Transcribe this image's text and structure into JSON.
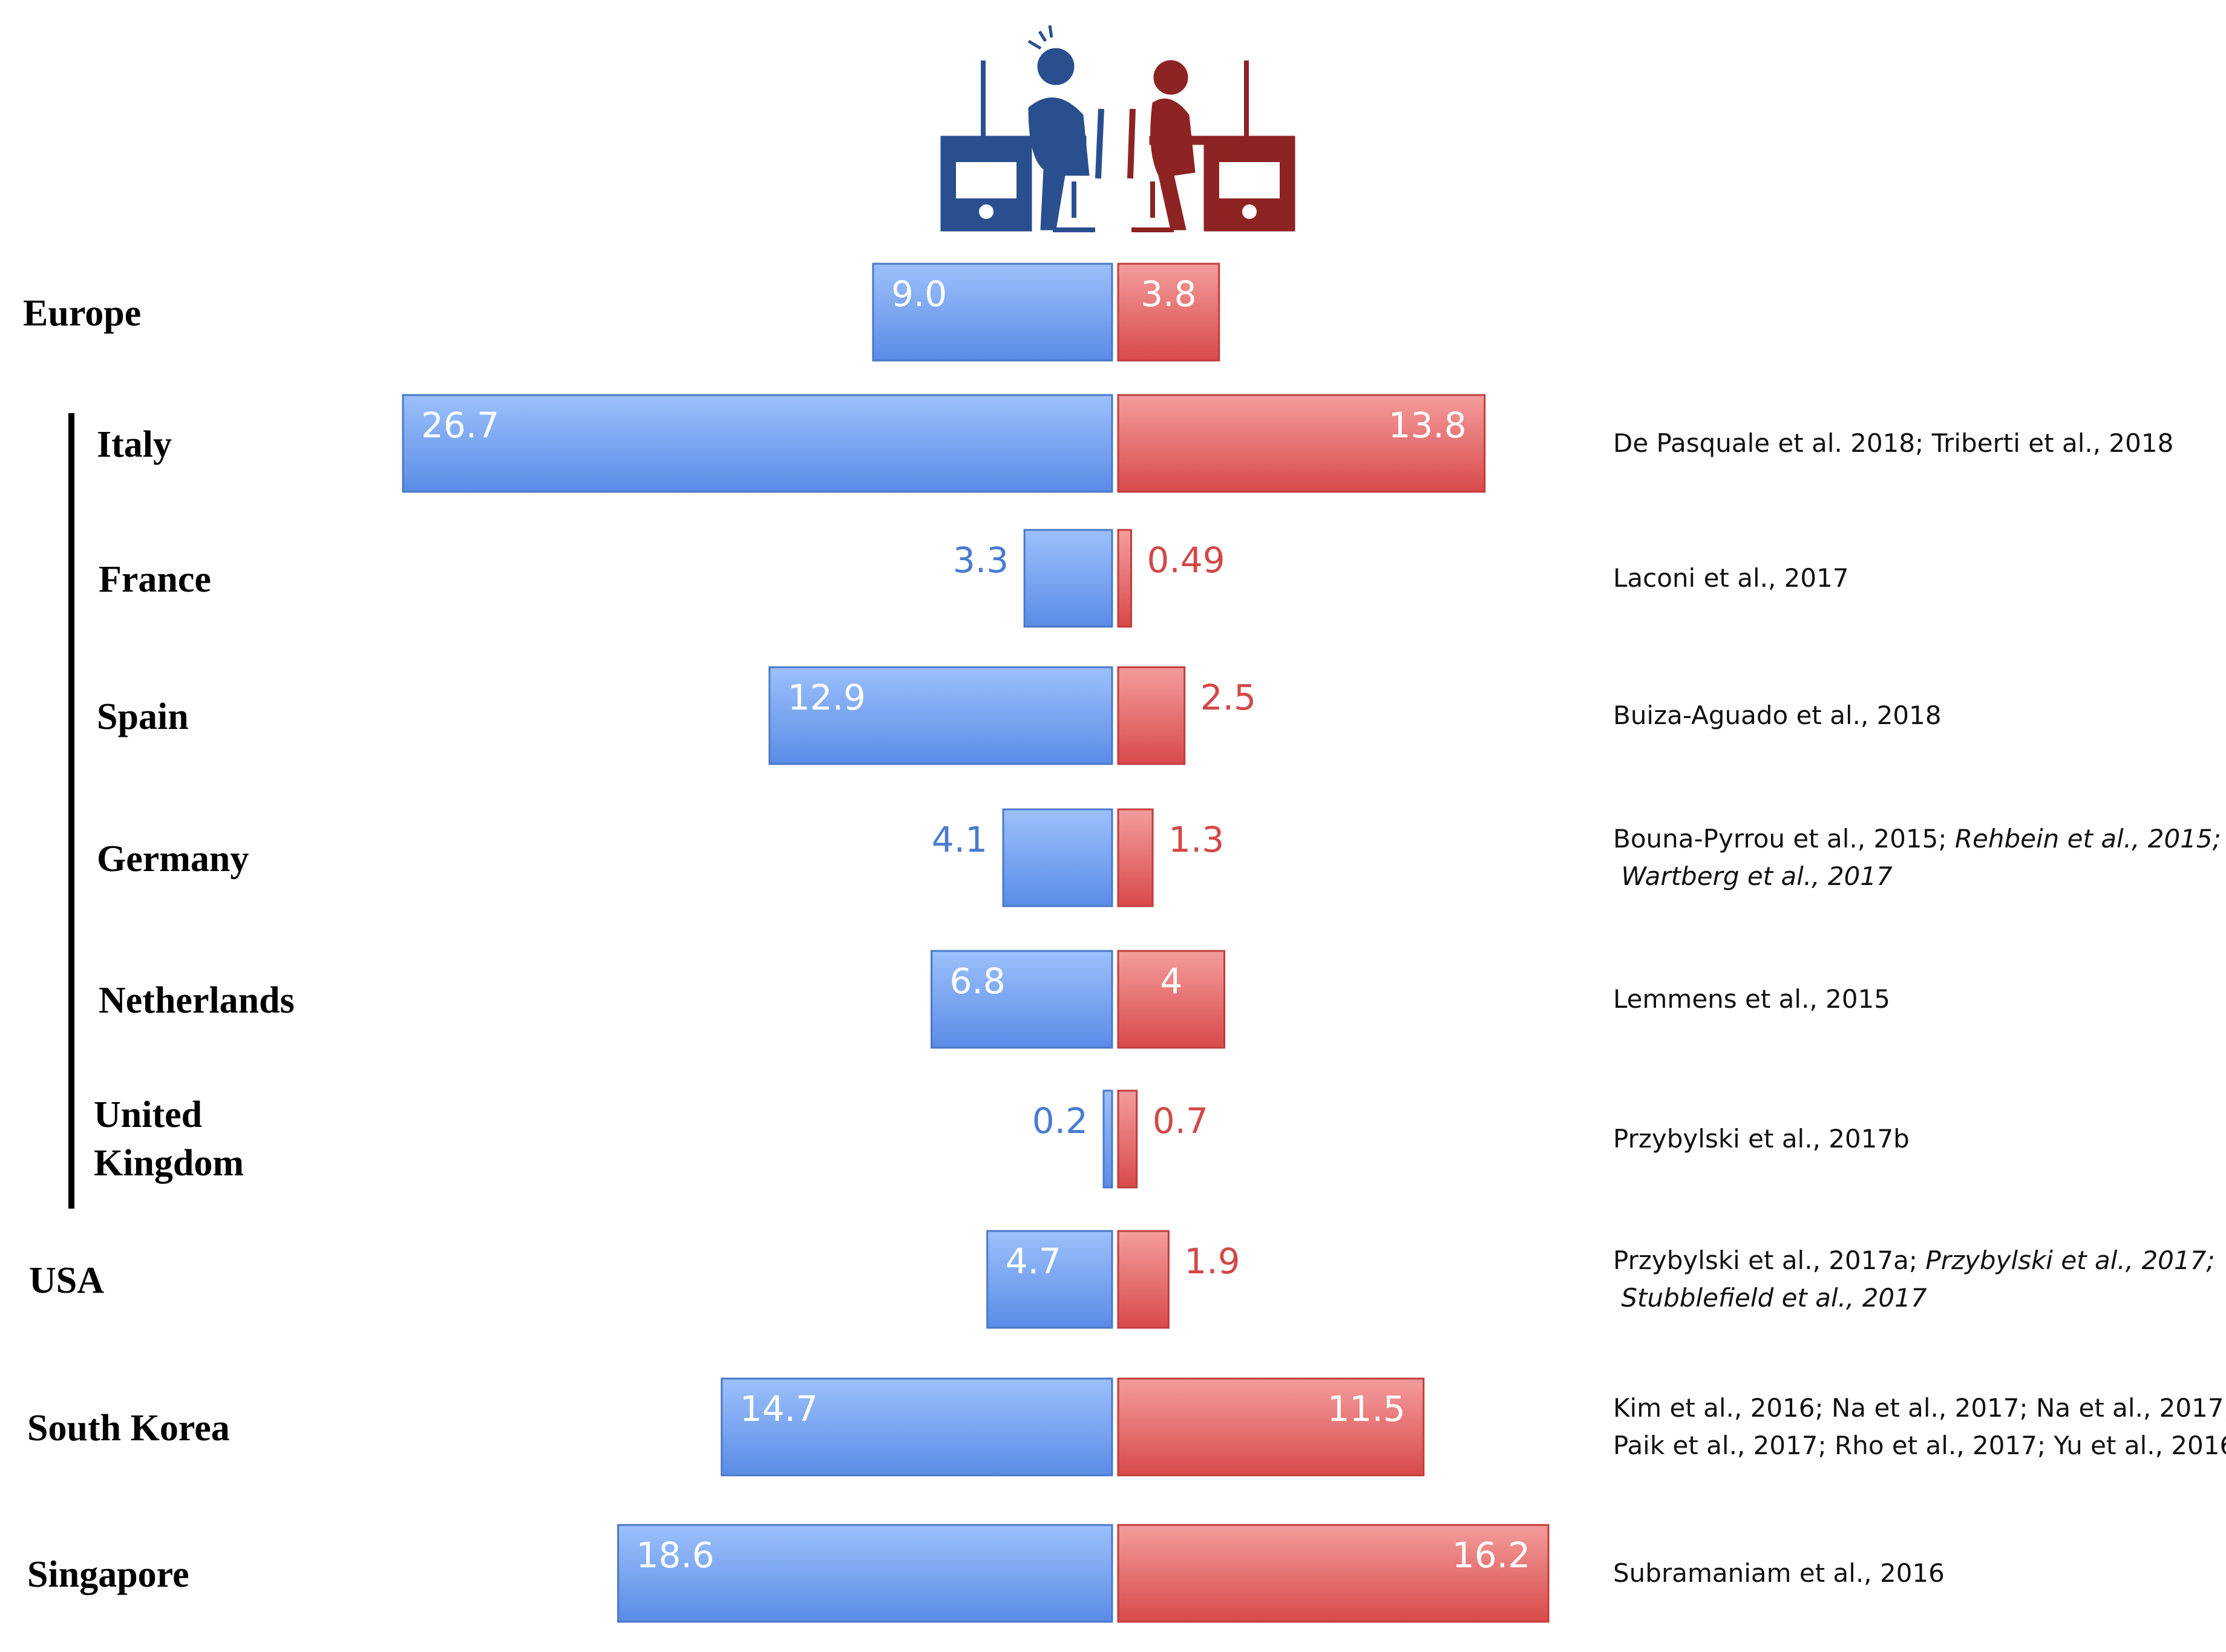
{
  "chart_data": {
    "type": "bar",
    "orientation": "horizontal",
    "layout": "diverging",
    "title": "",
    "xlabel": "",
    "ylabel": "",
    "grid": false,
    "legend": "none (icons: male gamer left, female gamer right)",
    "categories": [
      "Europe",
      "Italy",
      "France",
      "Spain",
      "Germany",
      "Netherlands",
      "United Kingdom",
      "USA",
      "South Korea",
      "Singapore"
    ],
    "grouped_under_europe": [
      "Italy",
      "France",
      "Spain",
      "Germany",
      "Netherlands",
      "United Kingdom"
    ],
    "series": [
      {
        "icon": "male-gamer-icon",
        "color": "#6f9ef2",
        "values": [
          9.0,
          26.7,
          3.3,
          12.9,
          4.1,
          6.8,
          0.2,
          4.7,
          14.7,
          18.6
        ],
        "labels": [
          "9.0",
          "26.7",
          "3.3",
          "12.9",
          "4.1",
          "6.8",
          "0.2",
          "4.7",
          "14.7",
          "18.6"
        ]
      },
      {
        "icon": "female-gamer-icon",
        "color": "#e85a5a",
        "values": [
          3.8,
          13.8,
          0.49,
          2.5,
          1.3,
          4,
          0.7,
          1.9,
          11.5,
          16.2
        ],
        "labels": [
          "3.8",
          "13.8",
          "0.49",
          "2.5",
          "1.3",
          "4",
          "0.7",
          "1.9",
          "11.5",
          "16.2"
        ]
      }
    ],
    "references": [
      [],
      [
        {
          "text": "De Pasquale et al. 2018; Triberti et al., 2018"
        }
      ],
      [
        {
          "text": "Laconi et al., 2017"
        }
      ],
      [
        {
          "text": "Buiza-Aguado et al., 2018"
        }
      ],
      [
        {
          "text": "Bouna-Pyrrou et al., 2015; "
        },
        {
          "text": "Rehbein et al.,  2015;",
          "italic": true
        },
        {
          "br": true
        },
        {
          "text": " Wartberg et al., 2017",
          "italic": true
        }
      ],
      [
        {
          "text": "Lemmens et al., 2015"
        }
      ],
      [
        {
          "text": "Przybylski et al., 2017b"
        }
      ],
      [
        {
          "text": "Przybylski et al., 2017a; "
        },
        {
          "text": "Przybylski et al., 2017;",
          "italic": true
        },
        {
          "br": true
        },
        {
          "text": " Stubblefield et al., 2017",
          "italic": true
        }
      ],
      [
        {
          "text": "Kim et al., 2016; Na et al., 2017; Na et al., 2017;"
        },
        {
          "br": true
        },
        {
          "text": "Paik et al., 2017; Rho et al., 2017; Yu et al., 2016"
        }
      ],
      [
        {
          "text": "Subramaniam et al., 2016"
        }
      ]
    ]
  }
}
